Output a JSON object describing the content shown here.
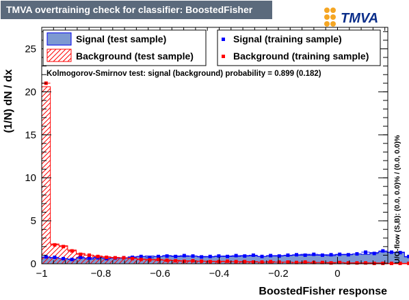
{
  "title": "TMVA overtraining check for classifier: BoostedFisher",
  "logo_text": "TMVA",
  "colors": {
    "signal_fill": "#7d99d1",
    "signal_line": "#0000ee",
    "signal_points": "#0000ff",
    "background_hatch": "#ff0000",
    "background_points": "#ff0000",
    "title_bg": "#5b6a7c",
    "logo_dots": "#f5a623"
  },
  "chart_data": {
    "type": "histogram",
    "xlabel": "BoostedFisher response",
    "ylabel": "(1/N) dN / dx",
    "xlim": [
      -1.0,
      0.17
    ],
    "ylim": [
      0,
      27.5
    ],
    "xticks": [
      -1,
      -0.8,
      -0.6,
      -0.4,
      -0.2,
      0
    ],
    "xtick_labels": [
      "−1",
      "−0.8",
      "−0.6",
      "−0.4",
      "−0.2",
      "0"
    ],
    "yticks": [
      0,
      5,
      10,
      15,
      20,
      25
    ],
    "ks_text": "Kolmogorov-Smirnov test: signal (background) probability = 0.899 (0.182)",
    "overflow_text": "U/O-flow (S,B): (0.0, 0.0)% / (0.0, 0.0)%",
    "legend": {
      "signal_test": "Signal (test sample)",
      "background_test": "Background (test sample)",
      "signal_train": "Signal (training sample)",
      "background_train": "Background (training sample)"
    },
    "bin_width": 0.0292,
    "bin_edges_start": -1.0,
    "signal_test": [
      0.75,
      0.65,
      0.6,
      0.55,
      0.65,
      0.55,
      0.75,
      0.8,
      0.7,
      0.65,
      0.8,
      0.85,
      0.9,
      0.85,
      0.95,
      0.9,
      0.85,
      0.9,
      0.85,
      0.8,
      0.85,
      0.9,
      0.85,
      0.95,
      0.9,
      0.85,
      0.9,
      0.95,
      0.95,
      1.0,
      1.1,
      1.0,
      1.05,
      0.95,
      1.05,
      1.1,
      1.15,
      1.1,
      1.3,
      1.4,
      1.3,
      1.35,
      0.8,
      0.6,
      0.45,
      0.3,
      0.2,
      0.1,
      0.05,
      0.02
    ],
    "signal_train": [
      0.8,
      0.75,
      0.6,
      0.5,
      0.75,
      0.65,
      0.7,
      0.6,
      0.65,
      0.7,
      0.75,
      0.85,
      0.7,
      0.85,
      0.9,
      0.85,
      0.95,
      0.9,
      0.8,
      0.85,
      0.9,
      0.85,
      0.95,
      0.9,
      1.0,
      0.85,
      0.95,
      0.9,
      1.0,
      1.05,
      1.0,
      1.1,
      1.0,
      1.05,
      1.1,
      1.05,
      1.15,
      1.35,
      1.2,
      1.5,
      1.35,
      1.3,
      0.85,
      0.55,
      0.5,
      0.35,
      0.2,
      0.15,
      0.05,
      0.02
    ],
    "background_test": [
      20.6,
      2.3,
      2.1,
      1.6,
      1.2,
      1.0,
      0.9,
      0.8,
      0.75,
      0.7,
      0.65,
      0.55,
      0.5,
      0.45,
      0.45,
      0.4,
      0.35,
      0.3,
      0.3,
      0.3,
      0.3,
      0.25,
      0.25,
      0.2,
      0.25,
      0.2,
      0.2,
      0.2,
      0.2,
      0.15,
      0.15,
      0.15,
      0.15,
      0.15,
      0.15,
      0.1,
      0.1,
      0.1,
      0.1,
      0.1,
      0.05,
      0.05,
      0.05,
      0.02,
      0.02,
      0.02,
      0.0,
      0.0,
      0.0,
      0.0
    ],
    "background_train": [
      21.0,
      2.2,
      2.0,
      1.5,
      1.1,
      1.0,
      0.85,
      0.75,
      0.7,
      0.7,
      0.6,
      0.5,
      0.45,
      0.5,
      0.4,
      0.35,
      0.3,
      0.35,
      0.3,
      0.25,
      0.25,
      0.3,
      0.25,
      0.25,
      0.2,
      0.2,
      0.25,
      0.2,
      0.2,
      0.15,
      0.2,
      0.15,
      0.15,
      0.1,
      0.15,
      0.1,
      0.1,
      0.1,
      0.05,
      0.05,
      0.05,
      0.05,
      0.05,
      0.02,
      0.02,
      0.0,
      0.0,
      0.0,
      0.0,
      0.0
    ]
  }
}
